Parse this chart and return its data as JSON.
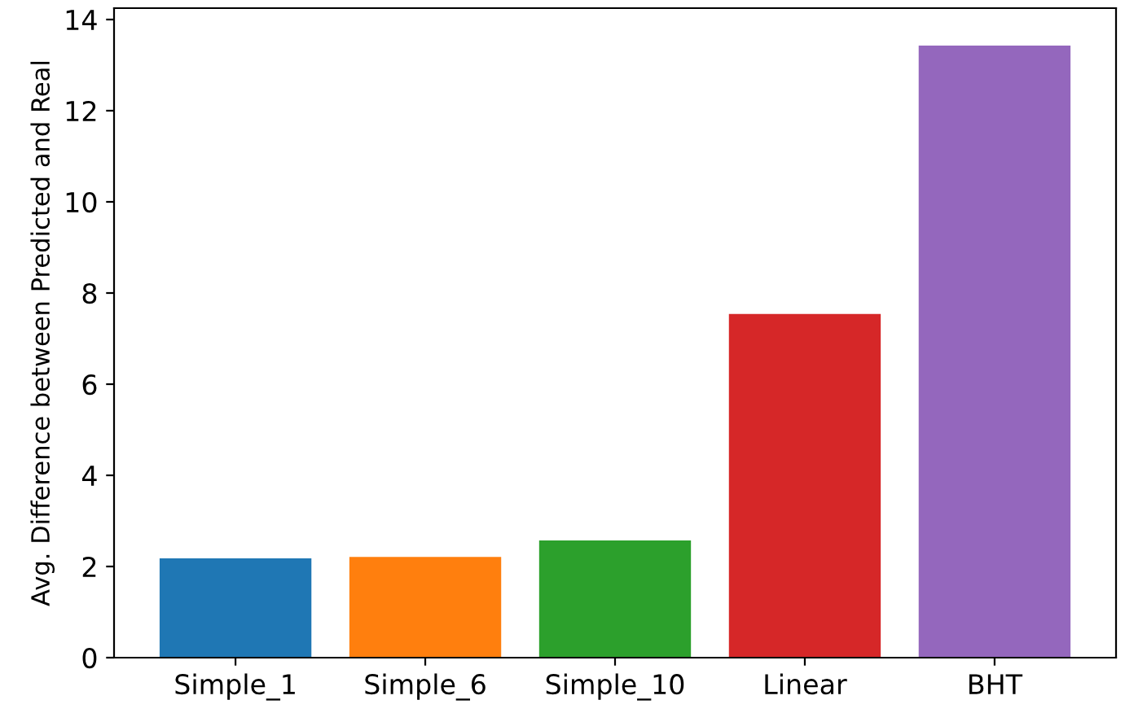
{
  "chart_data": {
    "type": "bar",
    "ylabel": "Avg. Difference between Predicted and Real",
    "categories": [
      "Simple_1",
      "Simple_6",
      "Simple_10",
      "Linear",
      "BHT"
    ],
    "values": [
      2.18,
      2.21,
      2.57,
      7.54,
      13.43
    ],
    "colors": [
      "#1f77b4",
      "#ff7f0e",
      "#2ca02c",
      "#d62728",
      "#9467bd"
    ],
    "ylim": [
      0,
      14.25
    ],
    "yticks": [
      0,
      2,
      4,
      6,
      8,
      10,
      12,
      14
    ],
    "grid": false,
    "legend": false
  }
}
